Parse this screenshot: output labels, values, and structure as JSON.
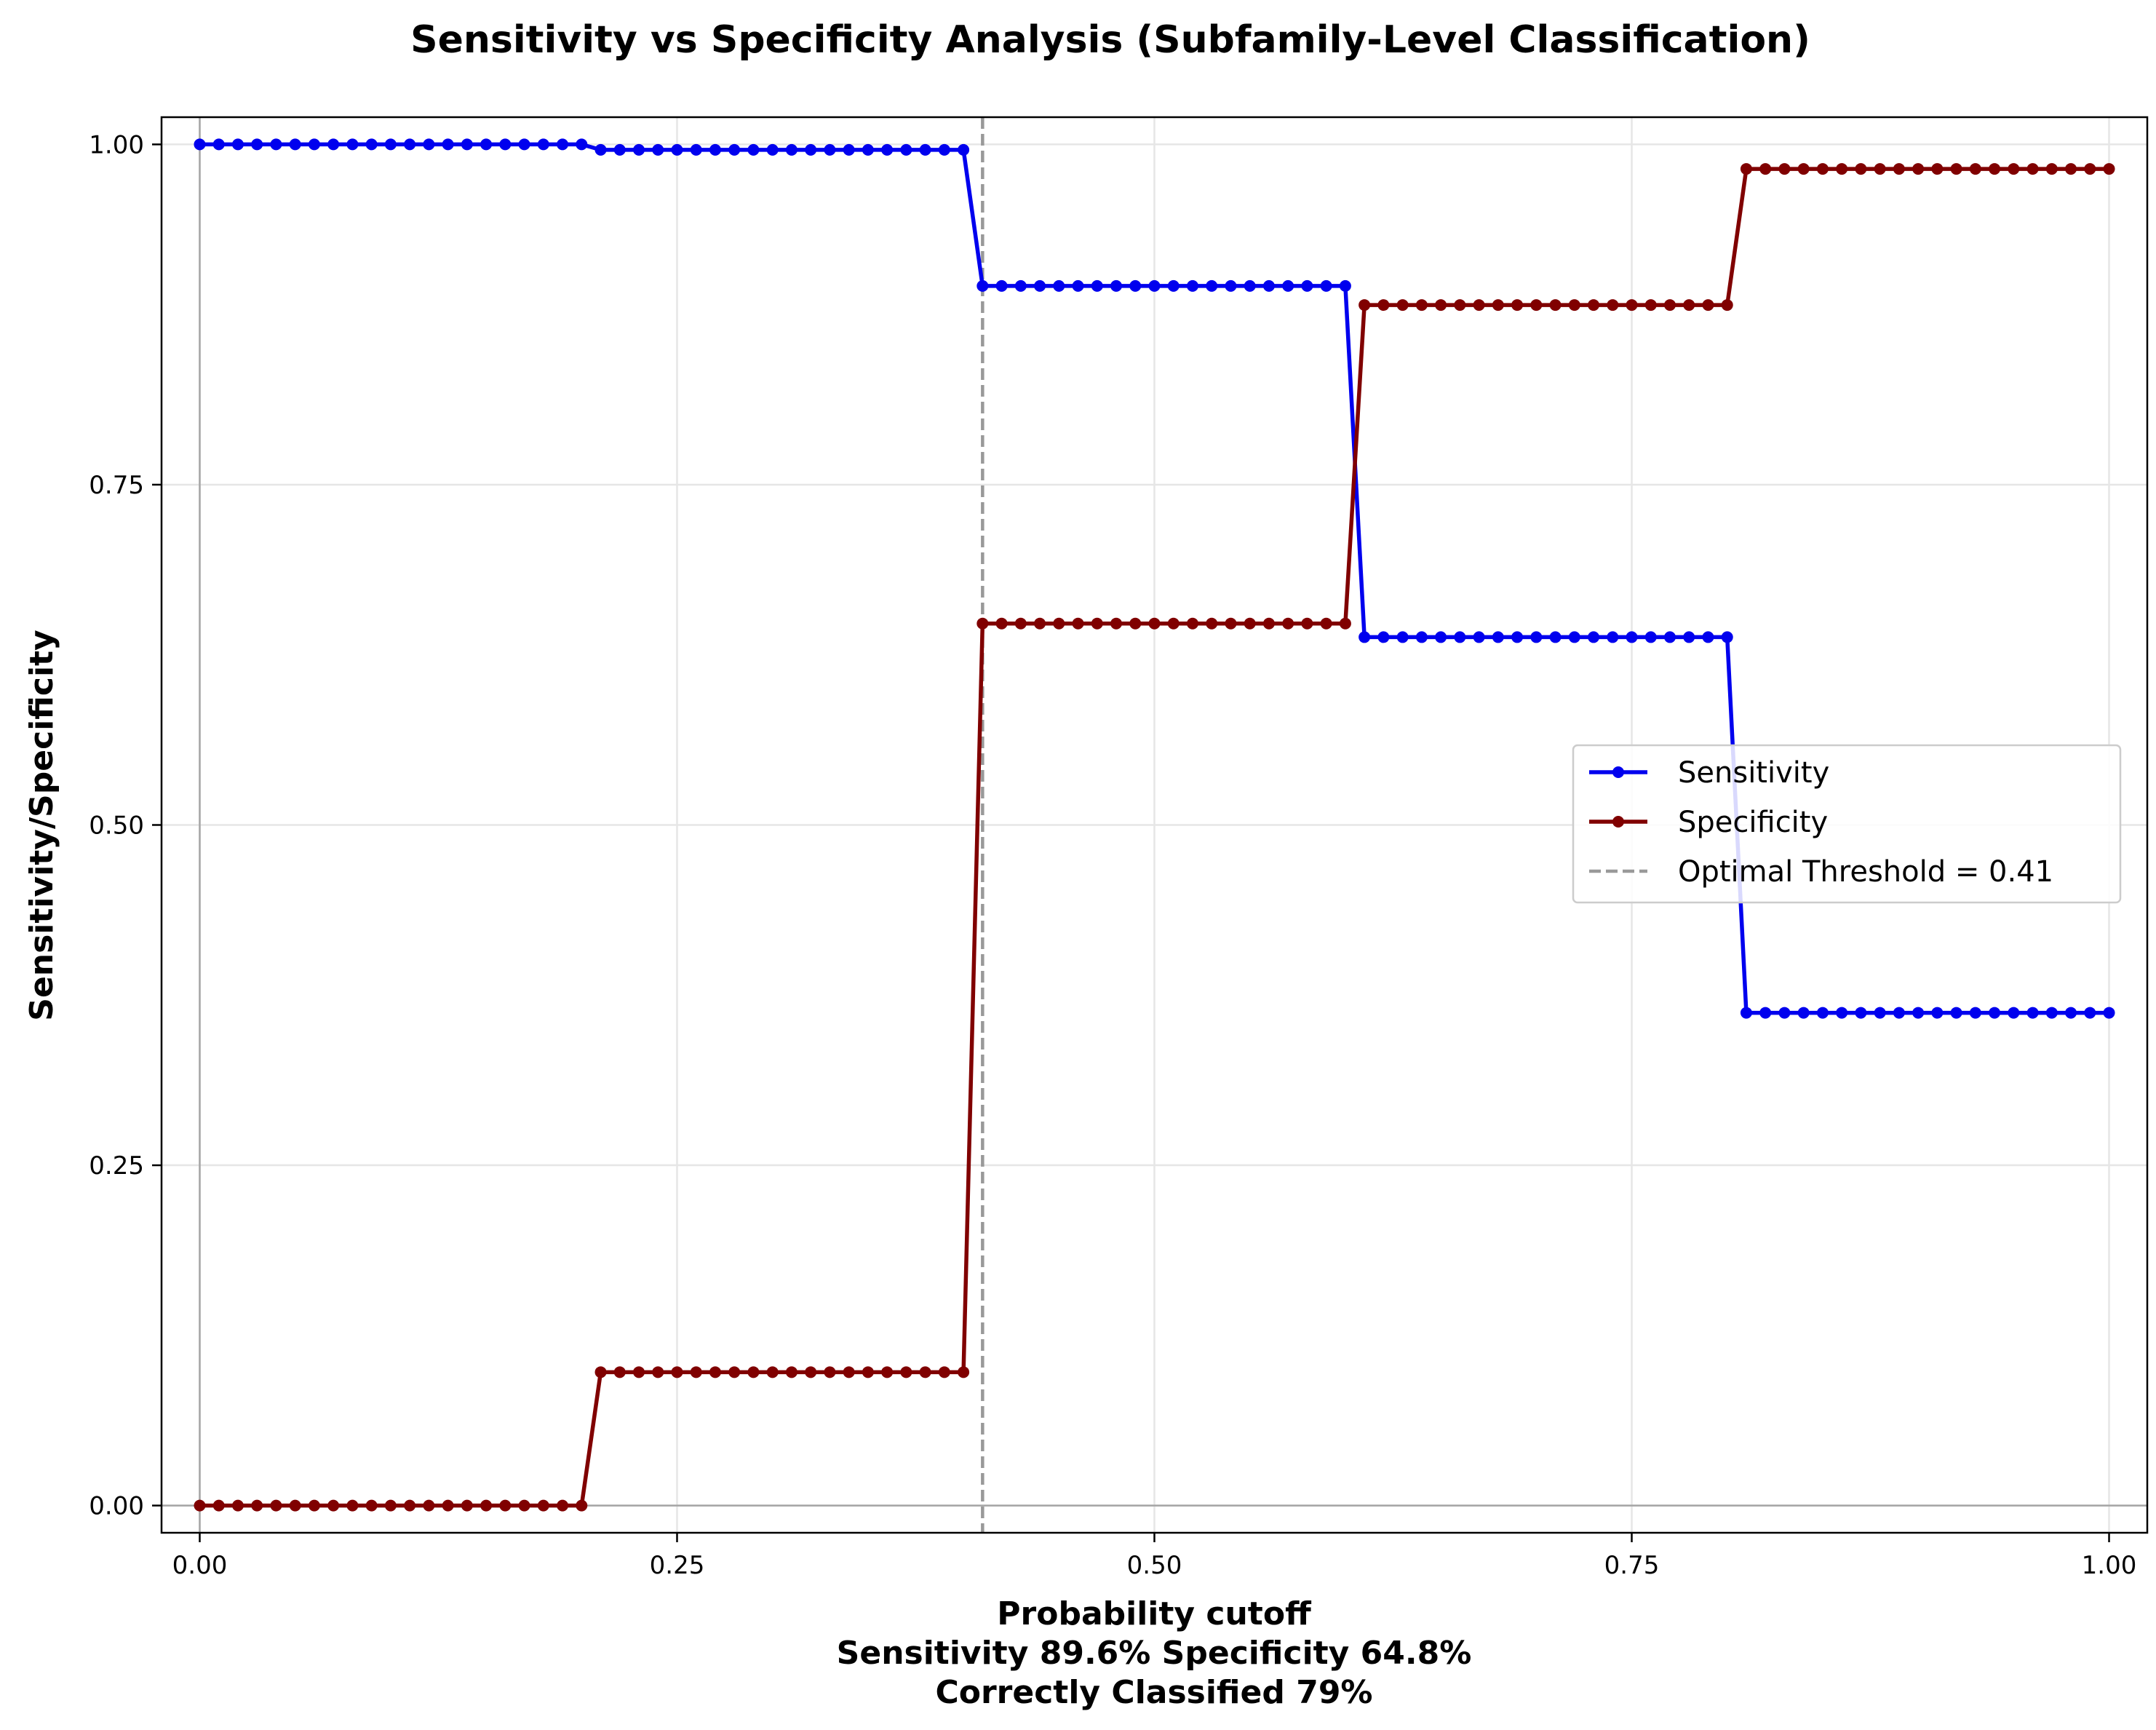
{
  "chart_data": {
    "type": "line",
    "title": "Sensitivity vs Specificity Analysis (Subfamily-Level Classification)",
    "xlabel": "Probability cutoff",
    "xlabel_lines": [
      "Probability cutoff",
      "Sensitivity 89.6% Specificity 64.8%",
      "Correctly Classified 79%"
    ],
    "ylabel": "Sensitivity/Specificity",
    "xlim": [
      -0.02,
      1.02
    ],
    "ylim": [
      -0.02,
      1.02
    ],
    "xticks": [
      0.0,
      0.25,
      0.5,
      0.75,
      1.0
    ],
    "xtick_labels": [
      "0.00",
      "0.25",
      "0.50",
      "0.75",
      "1.00"
    ],
    "yticks": [
      0.0,
      0.25,
      0.5,
      0.75,
      1.0
    ],
    "ytick_labels": [
      "0.00",
      "0.25",
      "0.50",
      "0.75",
      "1.00"
    ],
    "grid": true,
    "legend_position": "center-right",
    "x": [
      0.0,
      0.01,
      0.02,
      0.03,
      0.04,
      0.05,
      0.06,
      0.07,
      0.08,
      0.09,
      0.1,
      0.11,
      0.12,
      0.13,
      0.14,
      0.15,
      0.16,
      0.17,
      0.18,
      0.19,
      0.2,
      0.21,
      0.22,
      0.23,
      0.24,
      0.25,
      0.26,
      0.27,
      0.28,
      0.29,
      0.3,
      0.31,
      0.32,
      0.33,
      0.34,
      0.35,
      0.36,
      0.37,
      0.38,
      0.39,
      0.4,
      0.41,
      0.42,
      0.43,
      0.44,
      0.45,
      0.46,
      0.47,
      0.48,
      0.49,
      0.5,
      0.51,
      0.52,
      0.53,
      0.54,
      0.55,
      0.56,
      0.57,
      0.58,
      0.59,
      0.6,
      0.61,
      0.62,
      0.63,
      0.64,
      0.65,
      0.66,
      0.67,
      0.68,
      0.69,
      0.7,
      0.71,
      0.72,
      0.73,
      0.74,
      0.75,
      0.76,
      0.77,
      0.78,
      0.79,
      0.8,
      0.81,
      0.82,
      0.83,
      0.84,
      0.85,
      0.86,
      0.87,
      0.88,
      0.89,
      0.9,
      0.91,
      0.92,
      0.93,
      0.94,
      0.95,
      0.96,
      0.97,
      0.98,
      0.99,
      1.0
    ],
    "series": [
      {
        "name": "Sensitivity",
        "color": "#0000ee",
        "segments": [
          {
            "from": 0.0,
            "to": 0.2,
            "value": 1.0
          },
          {
            "from": 0.21,
            "to": 0.4,
            "value": 0.996
          },
          {
            "from": 0.41,
            "to": 0.6,
            "value": 0.896
          },
          {
            "from": 0.61,
            "to": 0.8,
            "value": 0.638
          },
          {
            "from": 0.81,
            "to": 1.0,
            "value": 0.362
          }
        ]
      },
      {
        "name": "Specificity",
        "color": "#800000",
        "segments": [
          {
            "from": 0.0,
            "to": 0.2,
            "value": 0.0
          },
          {
            "from": 0.21,
            "to": 0.4,
            "value": 0.098
          },
          {
            "from": 0.41,
            "to": 0.6,
            "value": 0.648
          },
          {
            "from": 0.61,
            "to": 0.8,
            "value": 0.882
          },
          {
            "from": 0.81,
            "to": 1.0,
            "value": 0.982
          }
        ]
      }
    ],
    "reference_lines": [
      {
        "orientation": "vertical",
        "x": 0.41,
        "style": "dashed",
        "color": "#999999",
        "name": "Optimal Threshold = 0.41"
      },
      {
        "orientation": "vertical",
        "x": 0.0,
        "style": "solid",
        "color": "#999999"
      },
      {
        "orientation": "horizontal",
        "y": 0.0,
        "style": "solid",
        "color": "#999999"
      }
    ],
    "legend": [
      "Sensitivity",
      "Specificity",
      "Optimal Threshold = 0.41"
    ]
  }
}
